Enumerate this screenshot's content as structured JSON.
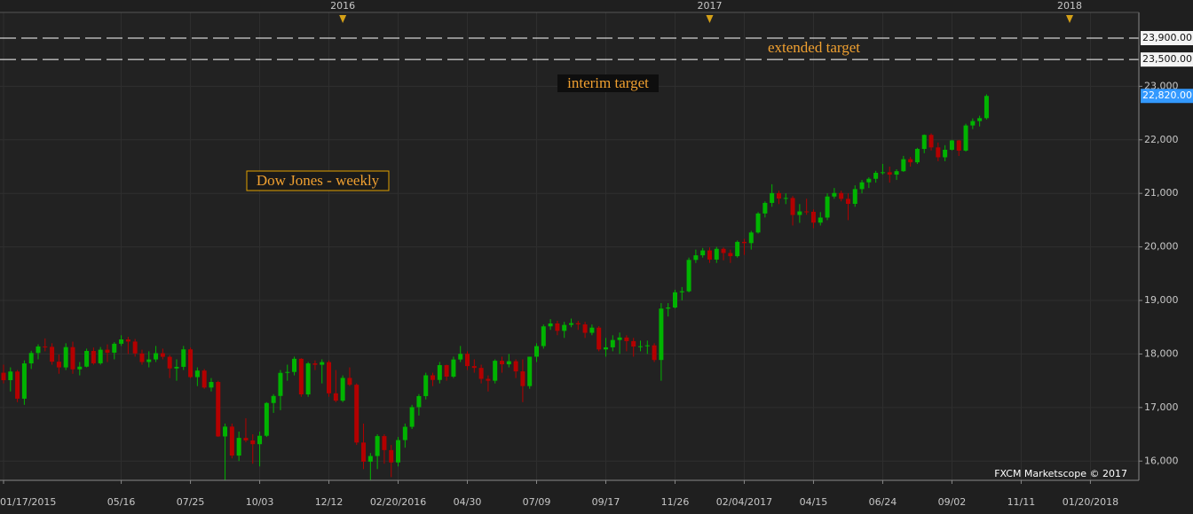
{
  "chart_data": {
    "type": "candlestick",
    "title": "Dow Jones - weekly",
    "annotations": [
      "extended target",
      "interim target"
    ],
    "credit": "FXCM Marketscope © 2017",
    "up_color": "#00b400",
    "down_color": "#b40000",
    "grid": true,
    "ylim": [
      15640,
      24380
    ],
    "yticks": [
      {
        "value": 16000,
        "label": "16,000"
      },
      {
        "value": 17000,
        "label": "17,000"
      },
      {
        "value": 18000,
        "label": "18,000"
      },
      {
        "value": 19000,
        "label": "19,000"
      },
      {
        "value": 20000,
        "label": "20,000"
      },
      {
        "value": 21000,
        "label": "21,000"
      },
      {
        "value": 22000,
        "label": "22,000"
      },
      {
        "value": 23000,
        "label": "23,000"
      }
    ],
    "x2ticks": [
      {
        "value": 49,
        "label": "2016"
      },
      {
        "value": 102,
        "label": "2017"
      },
      {
        "value": 154,
        "label": "2018"
      }
    ],
    "levels": [
      {
        "value": 23900,
        "label": "23,900.00"
      },
      {
        "value": 23500,
        "label": "23,500.00"
      }
    ],
    "last_price": {
      "value": 22820,
      "label": "22,820.00"
    },
    "categories": [
      "01/17/2015",
      null,
      null,
      null,
      null,
      null,
      null,
      null,
      null,
      null,
      null,
      null,
      null,
      null,
      null,
      null,
      null,
      "05/16",
      null,
      null,
      null,
      null,
      null,
      null,
      null,
      null,
      null,
      "07/25",
      null,
      null,
      null,
      null,
      null,
      null,
      null,
      null,
      null,
      "10/03",
      null,
      null,
      null,
      null,
      null,
      null,
      null,
      null,
      null,
      "12/12",
      null,
      null,
      null,
      null,
      null,
      null,
      null,
      null,
      null,
      "02/20/2016",
      null,
      null,
      null,
      null,
      null,
      null,
      null,
      null,
      null,
      "04/30",
      null,
      null,
      null,
      null,
      null,
      null,
      null,
      null,
      null,
      "07/09",
      null,
      null,
      null,
      null,
      null,
      null,
      null,
      null,
      null,
      "09/17",
      null,
      null,
      null,
      null,
      null,
      null,
      null,
      null,
      null,
      "11/26",
      null,
      null,
      null,
      null,
      null,
      null,
      null,
      null,
      null,
      "02/04/2017",
      null,
      null,
      null,
      null,
      null,
      null,
      null,
      null,
      null,
      "04/15",
      null,
      null,
      null,
      null,
      null,
      null,
      null,
      null,
      null,
      "06/24",
      null,
      null,
      null,
      null,
      null,
      null,
      null,
      null,
      null,
      "09/02",
      null,
      null,
      null,
      null,
      null,
      null,
      null,
      null,
      null,
      "11/11",
      null,
      null,
      null,
      null,
      null,
      null,
      null,
      null,
      null,
      "01/20/2018",
      null,
      null,
      null,
      null,
      null,
      null,
      null
    ],
    "open": [
      17650,
      17511,
      17672,
      17165,
      17824,
      18019,
      18140,
      18133,
      17856,
      17749,
      18128,
      17713,
      17763,
      18057,
      17826,
      18080,
      18024,
      18191,
      18272,
      18232,
      18010,
      17849,
      17898,
      18015,
      17947,
      17730,
      17760,
      18086,
      17568,
      17690,
      17373,
      17477,
      16460,
      16643,
      16102,
      16433,
      16385,
      16315,
      16472,
      17084,
      17216,
      17647,
      17664,
      17910,
      17245,
      17824,
      17798,
      17848,
      17265,
      17128,
      17553,
      17425,
      16346,
      15988,
      16094,
      16466,
      16205,
      15974,
      16392,
      16640,
      17007,
      17213,
      17602,
      17515,
      17792,
      17577,
      17897,
      18003,
      17774,
      17740,
      17535,
      17500,
      17873,
      17807,
      17865,
      17675,
      17400,
      17949,
      18147,
      18516,
      18570,
      18432,
      18543,
      18576,
      18552,
      18395,
      18492,
      18085,
      18124,
      18261,
      18308,
      18240,
      18138,
      18145,
      18161,
      17888,
      18848,
      18868,
      19152,
      19171,
      19757,
      19843,
      19934,
      19763,
      19964,
      19886,
      19827,
      20094,
      20071,
      20269,
      20624,
      20822,
      21005,
      20903,
      20914,
      20596,
      20663,
      20656,
      20453,
      20548,
      20941,
      21007,
      20897,
      20804,
      21080,
      21206,
      21272,
      21384,
      21395,
      21350,
      21414,
      21638,
      21580,
      21830,
      22092,
      21858,
      21674,
      21814,
      21988,
      21798,
      22268,
      22350,
      22405,
      null,
      null,
      null,
      null,
      null,
      null,
      null,
      null,
      null,
      null,
      null,
      null,
      null,
      null,
      null,
      null,
      null,
      null,
      null,
      null,
      null,
      null
    ],
    "high": [
      17800,
      17750,
      17700,
      17880,
      18060,
      18180,
      18290,
      18200,
      17990,
      18200,
      18230,
      17850,
      18100,
      18120,
      18130,
      18180,
      18220,
      18350,
      18320,
      18280,
      18080,
      18050,
      18150,
      18100,
      17980,
      17900,
      18150,
      18120,
      17750,
      17720,
      17550,
      17500,
      16700,
      16700,
      16550,
      16800,
      16500,
      16550,
      17100,
      17250,
      17700,
      17800,
      17950,
      17920,
      17850,
      17880,
      17900,
      17880,
      17700,
      17600,
      17750,
      17450,
      16700,
      16150,
      16500,
      16500,
      16300,
      16450,
      16700,
      17050,
      17250,
      17650,
      17650,
      17850,
      17800,
      17950,
      18150,
      18050,
      17900,
      17800,
      17600,
      17900,
      17950,
      18000,
      17900,
      17900,
      17950,
      18200,
      18550,
      18650,
      18620,
      18600,
      18660,
      18620,
      18600,
      18550,
      18520,
      18300,
      18350,
      18400,
      18350,
      18300,
      18250,
      18250,
      18200,
      18950,
      18950,
      19200,
      19250,
      19800,
      19950,
      19980,
      19990,
      20000,
      19990,
      19950,
      20120,
      20150,
      20300,
      20650,
      20850,
      21170,
      21050,
      21000,
      20950,
      20800,
      20900,
      20700,
      20650,
      21000,
      21100,
      21050,
      21000,
      21150,
      21250,
      21300,
      21420,
      21550,
      21500,
      21450,
      21700,
      21680,
      21850,
      22100,
      22120,
      21950,
      21900,
      22000,
      22000,
      22300,
      22400,
      22450,
      22850,
      null,
      null,
      null,
      null,
      null,
      null,
      null,
      null,
      null,
      null,
      null,
      null,
      null,
      null,
      null,
      null,
      null,
      null,
      null,
      null,
      null,
      null
    ],
    "low": [
      17450,
      17300,
      17100,
      17050,
      17720,
      17900,
      18050,
      17800,
      17630,
      17700,
      17630,
      17600,
      17750,
      17800,
      17800,
      17850,
      17900,
      18150,
      18000,
      17950,
      17800,
      17750,
      17850,
      17900,
      17550,
      17500,
      17700,
      17550,
      17400,
      17350,
      17300,
      16450,
      15650,
      16050,
      16000,
      16350,
      15950,
      15900,
      16450,
      16900,
      16950,
      17500,
      17600,
      17200,
      17200,
      17700,
      17450,
      17200,
      17100,
      17100,
      17400,
      16300,
      15850,
      15650,
      15850,
      15950,
      15700,
      15900,
      16250,
      16600,
      16850,
      17150,
      17400,
      17450,
      17500,
      17550,
      17850,
      17700,
      17650,
      17450,
      17300,
      17450,
      17650,
      17750,
      17550,
      17100,
      17350,
      17850,
      18100,
      18450,
      18350,
      18300,
      18500,
      18450,
      18300,
      18350,
      18050,
      17950,
      18050,
      18000,
      18050,
      17950,
      18050,
      18000,
      17850,
      17500,
      18700,
      18850,
      19000,
      19150,
      19700,
      19800,
      19700,
      19700,
      19750,
      19700,
      19800,
      19850,
      19950,
      20250,
      20550,
      20750,
      20800,
      20800,
      20400,
      20450,
      20600,
      20350,
      20400,
      20500,
      20900,
      20850,
      20500,
      20750,
      21000,
      21100,
      21200,
      21350,
      21200,
      21250,
      21400,
      21500,
      21550,
      21750,
      21800,
      21600,
      21600,
      21800,
      21700,
      21780,
      22200,
      22250,
      22380,
      null,
      null,
      null,
      null,
      null,
      null,
      null,
      null,
      null,
      null,
      null,
      null,
      null,
      null,
      null,
      null,
      null,
      null,
      null,
      null,
      null,
      null
    ],
    "close": [
      17511,
      17672,
      17165,
      17824,
      18019,
      18140,
      18133,
      17856,
      17749,
      18128,
      17713,
      17763,
      18057,
      17826,
      18080,
      18024,
      18191,
      18272,
      18232,
      18010,
      17849,
      17898,
      18015,
      17947,
      17730,
      17760,
      18086,
      17568,
      17690,
      17373,
      17477,
      16460,
      16643,
      16102,
      16433,
      16385,
      16315,
      16472,
      17084,
      17216,
      17647,
      17664,
      17910,
      17245,
      17824,
      17798,
      17848,
      17265,
      17128,
      17553,
      17425,
      16346,
      15988,
      16094,
      16466,
      16205,
      15974,
      16392,
      16640,
      17007,
      17213,
      17602,
      17515,
      17792,
      17577,
      17897,
      18003,
      17774,
      17740,
      17535,
      17500,
      17873,
      17807,
      17865,
      17675,
      17400,
      17949,
      18147,
      18516,
      18570,
      18432,
      18543,
      18576,
      18552,
      18395,
      18492,
      18085,
      18124,
      18261,
      18308,
      18240,
      18138,
      18145,
      18161,
      17888,
      18848,
      18868,
      19152,
      19171,
      19757,
      19843,
      19934,
      19763,
      19964,
      19886,
      19827,
      20094,
      20071,
      20269,
      20624,
      20822,
      21005,
      20903,
      20914,
      20596,
      20663,
      20656,
      20453,
      20548,
      20941,
      21007,
      20897,
      20804,
      21080,
      21206,
      21272,
      21384,
      21395,
      21350,
      21414,
      21638,
      21580,
      21830,
      22092,
      21858,
      21674,
      21814,
      21988,
      21798,
      22268,
      22350,
      22405,
      22820,
      null,
      null,
      null,
      null,
      null,
      null,
      null,
      null,
      null,
      null,
      null,
      null,
      null,
      null,
      null,
      null,
      null,
      null,
      null,
      null,
      null,
      null
    ]
  }
}
